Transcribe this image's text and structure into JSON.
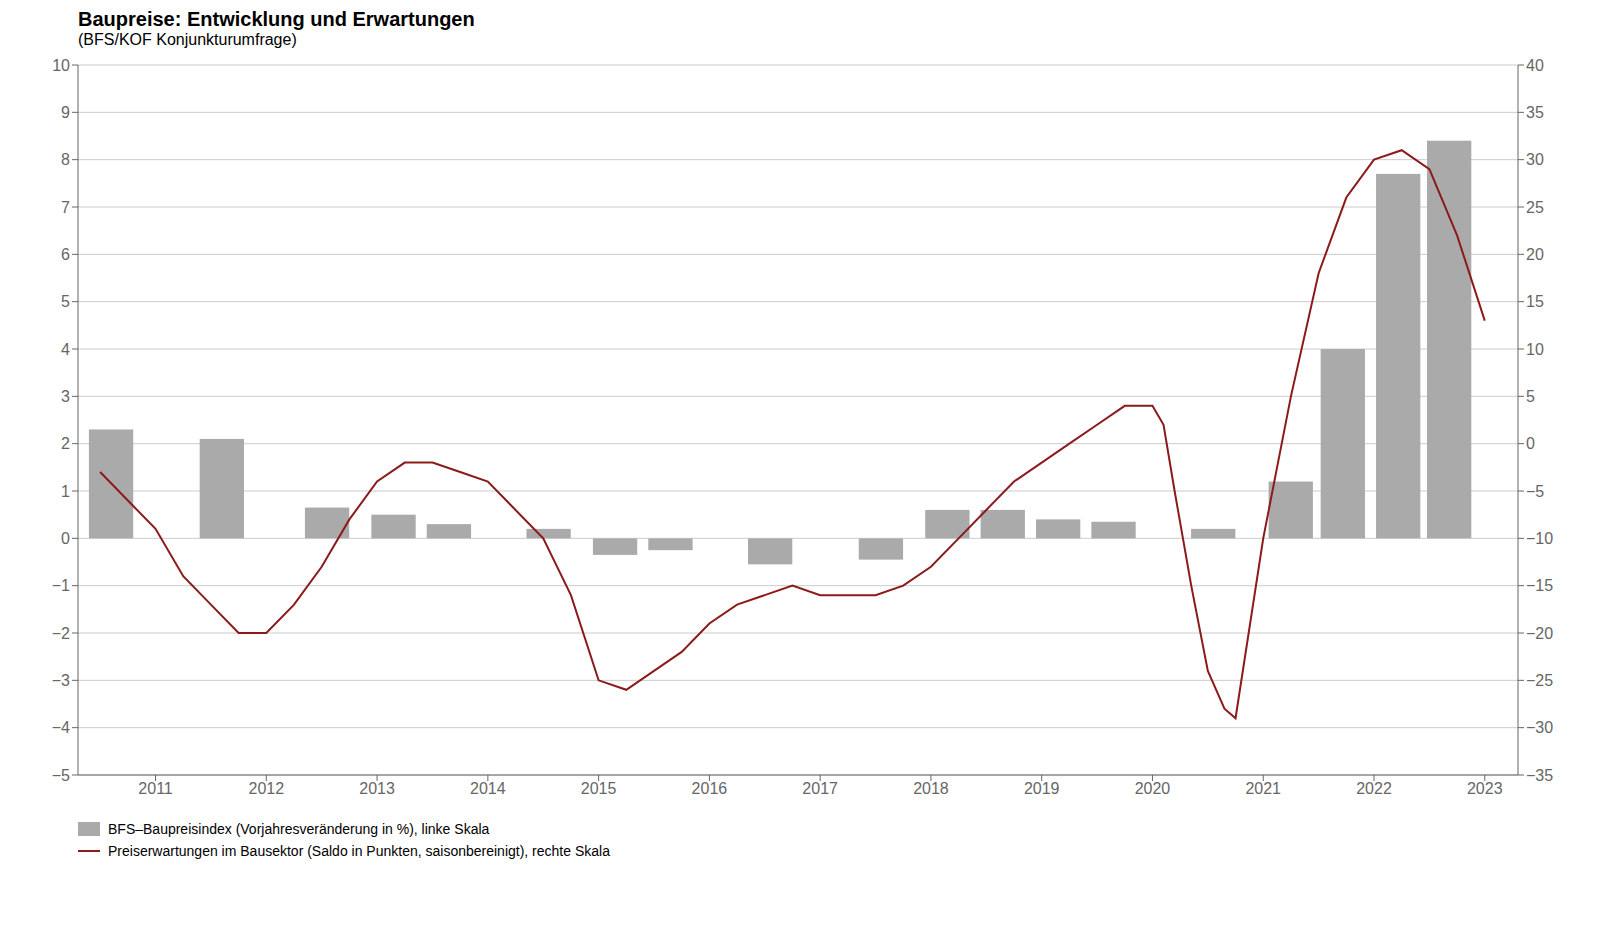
{
  "chart_data": {
    "type": "bar",
    "title": "Baupreise: Entwicklung und Erwartungen",
    "subtitle": "(BFS/KOF Konjunkturumfrage)",
    "series": [
      {
        "name": "BFS–Baupreisindex (Vorjahresveränderung in %), linke Skala",
        "type": "bar",
        "color": "#aaaaaa",
        "x": [
          2010.6,
          2011.6,
          2012.55,
          2013.15,
          2013.65,
          2014.55,
          2015.15,
          2015.65,
          2016.55,
          2017.55,
          2018.15,
          2018.65,
          2019.15,
          2019.65,
          2020.55,
          2021.25,
          2021.72,
          2022.22,
          2022.68
        ],
        "values": [
          2.3,
          2.1,
          0.65,
          0.5,
          0.3,
          0.2,
          -0.35,
          -0.25,
          -0.55,
          -0.45,
          0.6,
          0.6,
          0.4,
          0.35,
          0.2,
          1.2,
          4.0,
          7.7,
          8.4
        ]
      },
      {
        "name": "Preiserwartungen im Bausektor (Saldo in Punkten, saisonbereinigt), rechte Skala",
        "type": "line",
        "color": "#8b1a1a",
        "axis": "y2",
        "x": [
          2010.5,
          2010.75,
          2011.0,
          2011.25,
          2011.5,
          2011.75,
          2012.0,
          2012.25,
          2012.5,
          2012.75,
          2013.0,
          2013.25,
          2013.5,
          2013.75,
          2014.0,
          2014.25,
          2014.5,
          2014.75,
          2015.0,
          2015.25,
          2015.5,
          2015.75,
          2016.0,
          2016.25,
          2016.5,
          2016.75,
          2017.0,
          2017.25,
          2017.5,
          2017.75,
          2018.0,
          2018.25,
          2018.5,
          2018.75,
          2019.0,
          2019.25,
          2019.5,
          2019.75,
          2020.0,
          2020.1,
          2020.2,
          2020.35,
          2020.5,
          2020.65,
          2020.75,
          2021.0,
          2021.25,
          2021.5,
          2021.75,
          2022.0,
          2022.25,
          2022.5,
          2022.75,
          2023.0
        ],
        "values": [
          -3,
          -6,
          -9,
          -14,
          -17,
          -20,
          -20,
          -17,
          -13,
          -8,
          -4,
          -2,
          -2,
          -3,
          -4,
          -7,
          -10,
          -16,
          -25,
          -26,
          -24,
          -22,
          -19,
          -17,
          -16,
          -15,
          -16,
          -16,
          -16,
          -15,
          -13,
          -10,
          -7,
          -4,
          -2,
          0,
          2,
          4,
          4,
          2,
          -5,
          -15,
          -24,
          -28,
          -29,
          -10,
          5,
          18,
          26,
          30,
          31,
          29,
          22,
          13
        ]
      }
    ],
    "xlim": [
      2010.3,
      2023.3
    ],
    "xticks": [
      2011,
      2012,
      2013,
      2014,
      2015,
      2016,
      2017,
      2018,
      2019,
      2020,
      2021,
      2022,
      2023
    ],
    "ylim": [
      -5,
      10
    ],
    "yticks": [
      {
        "value": -5,
        "label": "−5"
      },
      {
        "value": -4,
        "label": "−4"
      },
      {
        "value": -3,
        "label": "−3"
      },
      {
        "value": -2,
        "label": "−2"
      },
      {
        "value": -1,
        "label": "−1"
      },
      0,
      1,
      2,
      3,
      4,
      5,
      6,
      7,
      8,
      9,
      10
    ],
    "y2lim": [
      -35,
      40
    ],
    "y2ticks": [
      {
        "value": -35,
        "label": "−35"
      },
      {
        "value": -30,
        "label": "−30"
      },
      {
        "value": -25,
        "label": "−25"
      },
      {
        "value": -20,
        "label": "−20"
      },
      {
        "value": -15,
        "label": "−15"
      },
      {
        "value": -10,
        "label": "−10"
      },
      {
        "value": -5,
        "label": "−5"
      },
      0,
      5,
      10,
      15,
      20,
      25,
      30,
      35,
      40
    ],
    "grid": true,
    "legend": "lower left"
  }
}
